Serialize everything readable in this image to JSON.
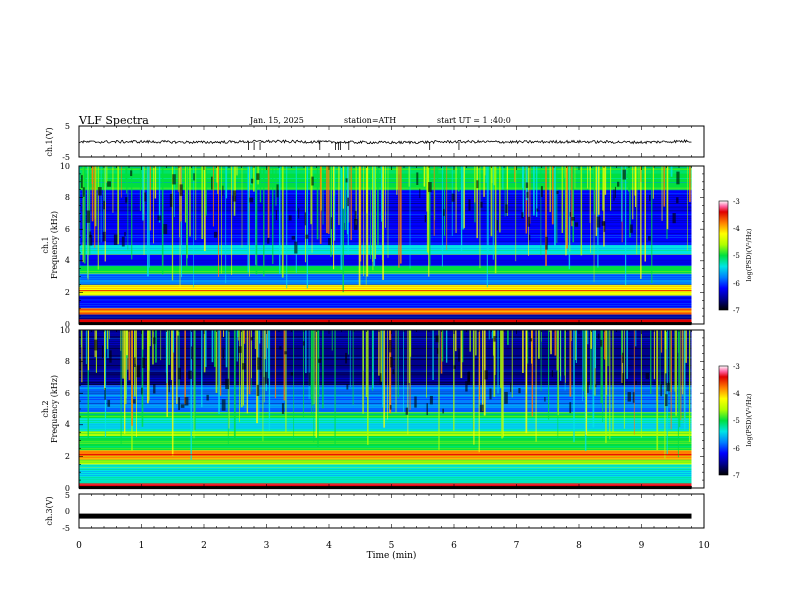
{
  "header": {
    "title": "VLF Spectra",
    "date": "Jan. 15, 2025",
    "station": "station=ATH",
    "start": "start UT =  1 :40:0"
  },
  "colors": {
    "trace": "#000000",
    "frame": "#000000",
    "colormap": [
      "#000000",
      "#00008b",
      "#0000ff",
      "#0080ff",
      "#00e5e5",
      "#00e040",
      "#b0ff00",
      "#ffff00",
      "#ff8000",
      "#e00000",
      "#ff60a0",
      "#ffffff"
    ]
  },
  "chart_data": [
    {
      "type": "line",
      "panel": "ch1-waveform",
      "ylabel": "ch.1(V)",
      "ylim": [
        -5,
        5
      ],
      "yticks": [
        "5",
        "-5"
      ],
      "x": [
        0,
        1,
        2,
        3,
        4,
        5,
        6,
        7,
        8,
        9,
        9.8
      ],
      "series": [
        {
          "values": [
            0.0,
            0.1,
            -0.1,
            0.2,
            0.0,
            -0.2,
            0.1,
            0.0,
            0.1,
            -0.1,
            0.3
          ]
        }
      ]
    },
    {
      "type": "heatmap",
      "panel": "ch1-spectrogram",
      "ylabel": "ch.1\nFrequency (kHz)",
      "yticks": [
        "10",
        "8",
        "6",
        "4",
        "2",
        "0"
      ],
      "ylim": [
        0,
        10
      ],
      "xlim": [
        0,
        9.8
      ],
      "colorbar": {
        "label": "log(PSD)(V²/Hz)",
        "range": [
          -7,
          -3
        ],
        "ticks": [
          "-3",
          "-4",
          "-5",
          "-6",
          "-7"
        ]
      },
      "bands_khz": [
        {
          "f": [
            0.0,
            0.3
          ],
          "level": -3.3
        },
        {
          "f": [
            0.3,
            0.6
          ],
          "level": -6.6
        },
        {
          "f": [
            0.6,
            1.0
          ],
          "level": -3.8
        },
        {
          "f": [
            1.0,
            1.8
          ],
          "level": -6.1
        },
        {
          "f": [
            1.8,
            2.5
          ],
          "level": -4.2
        },
        {
          "f": [
            2.5,
            3.2
          ],
          "level": -5.9
        },
        {
          "f": [
            3.2,
            3.7
          ],
          "level": -5.0
        },
        {
          "f": [
            3.7,
            4.4
          ],
          "level": -6.2
        },
        {
          "f": [
            4.4,
            5.0
          ],
          "level": -5.3
        },
        {
          "f": [
            5.0,
            6.0
          ],
          "level": -6.2
        },
        {
          "f": [
            6.0,
            8.5
          ],
          "level": -6.3
        },
        {
          "f": [
            8.5,
            10.0
          ],
          "level": -5.2
        }
      ]
    },
    {
      "type": "heatmap",
      "panel": "ch2-spectrogram",
      "ylabel": "ch.2\nFrequency (kHz)",
      "yticks": [
        "10",
        "8",
        "6",
        "4",
        "2",
        "0"
      ],
      "ylim": [
        0,
        10
      ],
      "xlim": [
        0,
        9.8
      ],
      "colorbar": {
        "label": "log(PSD)(V²/Hz)",
        "range": [
          -7,
          -3
        ],
        "ticks": [
          "-3",
          "-4",
          "-5",
          "-6",
          "-7"
        ]
      },
      "bands_khz": [
        {
          "f": [
            0.0,
            0.3
          ],
          "level": -3.3
        },
        {
          "f": [
            0.3,
            1.5
          ],
          "level": -5.3
        },
        {
          "f": [
            1.5,
            1.8
          ],
          "level": -4.8
        },
        {
          "f": [
            1.8,
            2.4
          ],
          "level": -4.0
        },
        {
          "f": [
            2.4,
            3.3
          ],
          "level": -5.0
        },
        {
          "f": [
            3.3,
            3.6
          ],
          "level": -4.5
        },
        {
          "f": [
            3.6,
            4.4
          ],
          "level": -5.3
        },
        {
          "f": [
            4.4,
            4.8
          ],
          "level": -5.0
        },
        {
          "f": [
            4.8,
            6.5
          ],
          "level": -6.0
        },
        {
          "f": [
            6.5,
            10.0
          ],
          "level": -6.5
        }
      ]
    },
    {
      "type": "line",
      "panel": "ch3-waveform",
      "ylabel": "ch.3(V)",
      "ylim": [
        -5,
        5
      ],
      "yticks": [
        "5",
        "0",
        "-5"
      ],
      "x": [
        0,
        9.8
      ],
      "series": [
        {
          "values": [
            -1.5,
            -1.5
          ]
        }
      ]
    }
  ],
  "xaxis": {
    "label": "Time (min)",
    "ticks": [
      "0",
      "1",
      "2",
      "3",
      "4",
      "5",
      "6",
      "7",
      "8",
      "9",
      "10"
    ],
    "range": [
      0,
      10
    ]
  }
}
